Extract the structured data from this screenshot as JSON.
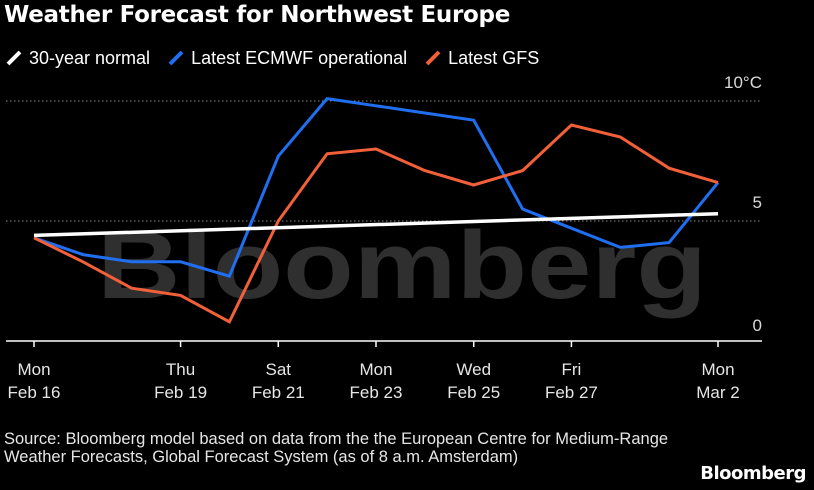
{
  "title": "Weather Forecast for Northwest Europe",
  "legend": [
    {
      "label": "30-year normal",
      "color": "#ffffff"
    },
    {
      "label": "Latest ECMWF operational",
      "color": "#1f6ff0"
    },
    {
      "label": "Latest GFS",
      "color": "#f2603a"
    }
  ],
  "watermark": "Bloomberg",
  "source": "Source: Bloomberg model based on data from the the European Centre for Medium-Range Weather Forecasts, Global Forecast System (as of 8 a.m. Amsterdam)",
  "logo": "Bloomberg",
  "chart_data": {
    "type": "line",
    "title": "Weather Forecast for Northwest Europe",
    "ylabel": "°C",
    "ylim": [
      0,
      10.5
    ],
    "yticks": [
      0,
      5,
      10
    ],
    "ytick_labels": [
      "0",
      "5",
      "10°C"
    ],
    "x_days": [
      0,
      1,
      2,
      3,
      4,
      5,
      6,
      7,
      8,
      9,
      10,
      11,
      12,
      13,
      14
    ],
    "xticks": [
      {
        "day": 0,
        "line1": "Mon",
        "line2": "Feb 16"
      },
      {
        "day": 3,
        "line1": "Thu",
        "line2": "Feb 19"
      },
      {
        "day": 5,
        "line1": "Sat",
        "line2": "Feb 21"
      },
      {
        "day": 7,
        "line1": "Mon",
        "line2": "Feb 23"
      },
      {
        "day": 9,
        "line1": "Wed",
        "line2": "Feb 25"
      },
      {
        "day": 11,
        "line1": "Fri",
        "line2": "Feb 27"
      },
      {
        "day": 14,
        "line1": "Mon",
        "line2": "Mar 2"
      }
    ],
    "series": [
      {
        "name": "30-year normal",
        "color": "#ffffff",
        "x": [
          0,
          14
        ],
        "values": [
          4.4,
          5.3
        ]
      },
      {
        "name": "Latest ECMWF operational",
        "color": "#1f6ff0",
        "x": [
          0,
          1,
          2,
          3,
          4,
          5,
          6,
          7,
          8,
          9,
          10,
          11,
          12,
          13,
          14
        ],
        "values": [
          4.3,
          3.6,
          3.3,
          3.3,
          2.7,
          7.7,
          10.1,
          9.8,
          9.5,
          9.2,
          5.5,
          4.7,
          3.9,
          4.1,
          6.6
        ]
      },
      {
        "name": "Latest GFS",
        "color": "#f2603a",
        "x": [
          0,
          1,
          2,
          3,
          4,
          5,
          6,
          7,
          8,
          9,
          10,
          11,
          12,
          13,
          14
        ],
        "values": [
          4.3,
          3.3,
          2.2,
          1.9,
          0.8,
          5.0,
          7.8,
          8.0,
          7.1,
          6.5,
          7.1,
          9.0,
          8.5,
          7.2,
          6.6
        ]
      }
    ]
  }
}
